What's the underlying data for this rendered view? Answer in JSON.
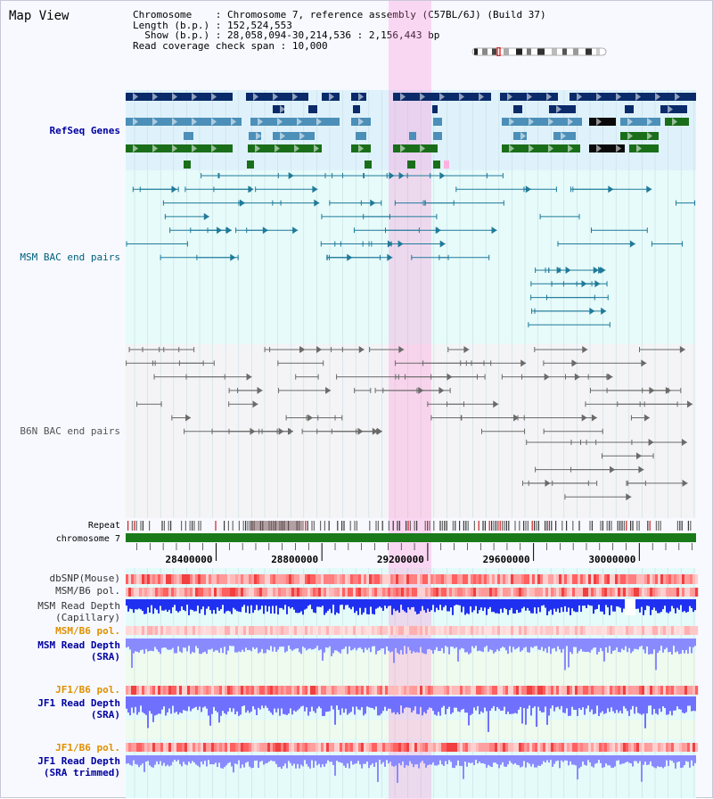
{
  "title": "Map View",
  "info": {
    "chromosome_label": "Chromosome",
    "chromosome_value": "Chromosome 7, reference assembly (C57BL/6J) (Build 37)",
    "length_label": "Length (b.p.)",
    "length_value": "152,524,553",
    "show_label": "Show (b.p.)",
    "show_value": "28,058,094-30,214,536 : 2,156,443 bp",
    "coverage_label": "Read coverage check span",
    "coverage_value": "10,000"
  },
  "axis": {
    "view_start": 28058094,
    "view_end": 30214536,
    "ticks": [
      "28400000",
      "28800000",
      "29200000",
      "29600000",
      "30000000"
    ],
    "tick_values": [
      28400000,
      28800000,
      29200000,
      29600000,
      30000000
    ],
    "chromosome_track_label": "chromosome 7",
    "repeat_track_label": "Repeat"
  },
  "tracks": {
    "refseq": {
      "label": "RefSeq Genes",
      "color": "#0000a0"
    },
    "msm_bac": {
      "label": "MSM BAC end pairs",
      "color": "#00607a"
    },
    "b6n_bac": {
      "label": "B6N BAC end pairs",
      "color": "#555555"
    },
    "dbsnp": {
      "label": "dbSNP(Mouse)",
      "color": "#333333"
    },
    "msm_b6_pol": {
      "label": "MSM/B6 pol.",
      "color": "#333333"
    },
    "msm_depth_cap": {
      "label1": "MSM Read Depth",
      "label2": "(Capillary)",
      "color": "#333333"
    },
    "msm_b6_pol2": {
      "label": "MSM/B6 pol.",
      "color": "#e09000"
    },
    "msm_depth_sra": {
      "label1": "MSM Read Depth",
      "label2": "(SRA)",
      "color": "#0000a0"
    },
    "jf1_b6_pol": {
      "label": "JF1/B6 pol.",
      "color": "#e09000"
    },
    "jf1_depth_sra": {
      "label1": "JF1 Read Depth",
      "label2": "(SRA)",
      "color": "#0000a0"
    },
    "jf1_b6_pol2": {
      "label": "JF1/B6 pol.",
      "color": "#e09000"
    },
    "jf1_depth_trim": {
      "label1": "JF1 Read Depth",
      "label2": "(SRA trimmed)",
      "color": "#0000a0"
    }
  }
}
